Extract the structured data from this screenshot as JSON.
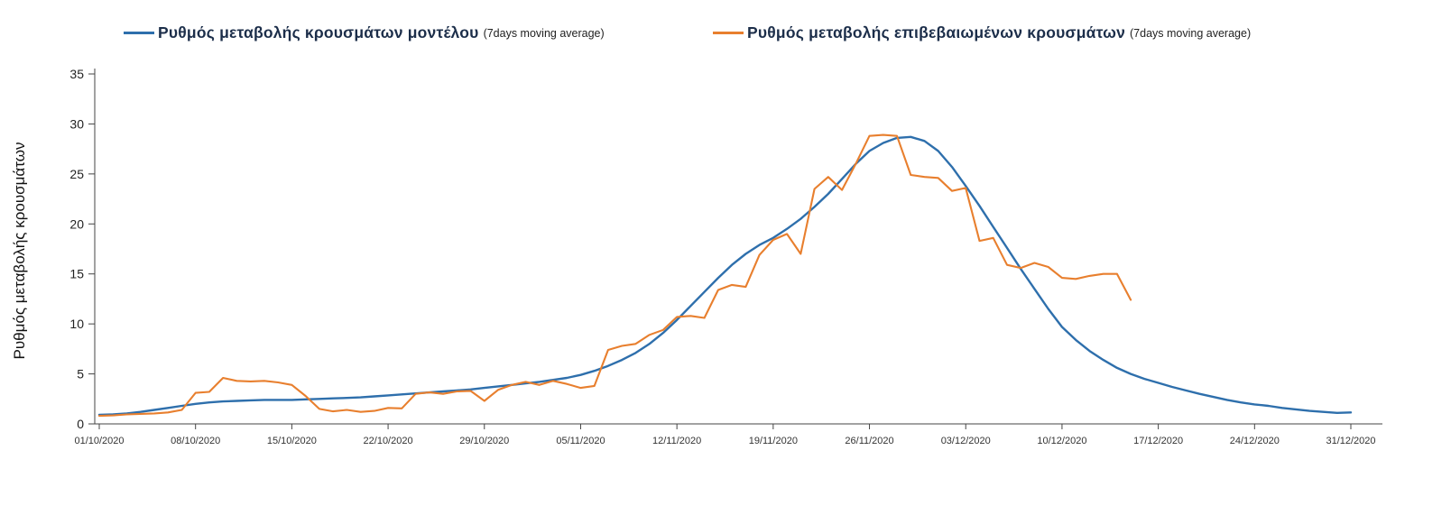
{
  "legend": [
    {
      "label": "Ρυθμός μεταβολής κρουσμάτων μοντέλου",
      "suffix": "(7days moving average)",
      "color": "#2E6FAC"
    },
    {
      "label": "Ρυθμός μεταβολής επιβεβαιωμένων κρουσμάτων",
      "suffix": "(7days moving average)",
      "color": "#E87F2E"
    }
  ],
  "chart_data": {
    "type": "line",
    "title": "",
    "xlabel": "",
    "ylabel": "Ρυθμός μεταβολής κρουσμάτων",
    "ylim": [
      0,
      35
    ],
    "yticks": [
      0,
      5,
      10,
      15,
      20,
      25,
      30,
      35
    ],
    "grid": false,
    "legend_position": "top",
    "x_unit": "day",
    "days_per_tick": 7,
    "x_tick_labels": [
      "01/10/2020",
      "08/10/2020",
      "15/10/2020",
      "22/10/2020",
      "29/10/2020",
      "05/11/2020",
      "12/11/2020",
      "19/11/2020",
      "26/11/2020",
      "03/12/2020",
      "10/12/2020",
      "17/12/2020",
      "24/12/2020",
      "31/12/2020"
    ],
    "series": [
      {
        "name": "Ρυθμός μεταβολής κρουσμάτων μοντέλου (7days moving average)",
        "data_name": "model-line",
        "color": "#2E6FAC",
        "start_day": 0,
        "values": [
          0.9,
          0.95,
          1.05,
          1.2,
          1.4,
          1.6,
          1.8,
          2.0,
          2.15,
          2.25,
          2.3,
          2.35,
          2.4,
          2.4,
          2.4,
          2.45,
          2.5,
          2.55,
          2.6,
          2.65,
          2.75,
          2.85,
          2.95,
          3.05,
          3.15,
          3.25,
          3.35,
          3.45,
          3.6,
          3.75,
          3.9,
          4.05,
          4.2,
          4.4,
          4.6,
          4.9,
          5.3,
          5.8,
          6.4,
          7.1,
          8.0,
          9.1,
          10.4,
          11.8,
          13.2,
          14.6,
          15.9,
          17.0,
          17.9,
          18.6,
          19.5,
          20.5,
          21.7,
          23.0,
          24.5,
          26.0,
          27.3,
          28.1,
          28.6,
          28.7,
          28.3,
          27.3,
          25.7,
          23.8,
          21.8,
          19.7,
          17.6,
          15.5,
          13.5,
          11.5,
          9.7,
          8.4,
          7.3,
          6.4,
          5.6,
          5.0,
          4.5,
          4.1,
          3.7,
          3.35,
          3.0,
          2.7,
          2.4,
          2.15,
          1.95,
          1.8,
          1.6,
          1.45,
          1.3,
          1.2,
          1.1,
          1.15
        ]
      },
      {
        "name": "Ρυθμός μεταβολής επιβεβαιωμένων κρουσμάτων (7days moving average)",
        "data_name": "confirmed-line",
        "color": "#E87F2E",
        "start_day": 0,
        "values": [
          0.8,
          0.85,
          0.95,
          1.0,
          1.05,
          1.15,
          1.4,
          3.1,
          3.2,
          4.6,
          4.3,
          4.25,
          4.3,
          4.15,
          3.9,
          2.8,
          1.5,
          1.25,
          1.4,
          1.2,
          1.3,
          1.6,
          1.55,
          3.0,
          3.15,
          3.0,
          3.25,
          3.3,
          2.3,
          3.4,
          3.9,
          4.2,
          3.9,
          4.3,
          4.0,
          3.6,
          3.8,
          7.4,
          7.8,
          8.0,
          8.9,
          9.4,
          10.7,
          10.8,
          10.6,
          13.4,
          13.9,
          13.7,
          16.9,
          18.4,
          19.0,
          17.0,
          23.5,
          24.7,
          23.4,
          26.0,
          28.8,
          28.9,
          28.8,
          24.9,
          24.7,
          24.6,
          23.3,
          23.6,
          18.3,
          18.6,
          15.9,
          15.6,
          16.1,
          15.7,
          14.6,
          14.5,
          14.8,
          15.0,
          15.0,
          12.4
        ]
      }
    ]
  }
}
